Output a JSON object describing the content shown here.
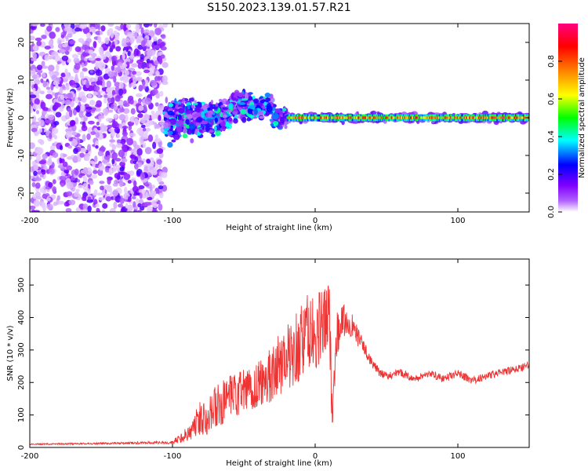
{
  "figure_title": "S150.2023.139.01.57.R21",
  "chart_data": [
    {
      "type": "heatmap",
      "title": "",
      "xlabel": "Height of straight line (km)",
      "ylabel": "Frequency (Hz)",
      "xlim": [
        -200,
        150
      ],
      "ylim": [
        -25,
        25
      ],
      "xticks": [
        -200,
        -100,
        0,
        100
      ],
      "yticks": [
        -20,
        -10,
        0,
        10,
        20
      ],
      "colorbar": {
        "label": "Normalized spectral amplitude",
        "range": [
          0,
          1
        ],
        "ticks": [
          "0.0",
          "0.2",
          "0.4",
          "0.6",
          "0.8"
        ],
        "tick_values": [
          0.0,
          0.2,
          0.4,
          0.6,
          0.8
        ],
        "colors": [
          "#ffffff",
          "#8000ff",
          "#0000ff",
          "#00ffff",
          "#00ff00",
          "#ffff00",
          "#ff8000",
          "#ff0000",
          "#ff0080"
        ]
      },
      "regions": [
        {
          "name": "diffuse noise",
          "x": [
            -200,
            -105
          ],
          "freq_spread_hz": 25,
          "amplitude": 0.05
        },
        {
          "name": "turbulent echo",
          "x": [
            -105,
            -20
          ],
          "freq_center_hz": 0,
          "freq_spread_hz": 8,
          "amplitude": 0.25
        },
        {
          "name": "steady line echo",
          "x": [
            -20,
            150
          ],
          "freq_center_hz": 0,
          "freq_spread_hz": 1.5,
          "amplitude": 0.9
        }
      ]
    },
    {
      "type": "line",
      "title": "",
      "xlabel": "Height of straight line (km)",
      "ylabel": "SNR (10 * v/v)",
      "xlim": [
        -200,
        150
      ],
      "ylim": [
        0,
        580
      ],
      "xticks": [
        -200,
        -100,
        0,
        100
      ],
      "yticks": [
        0,
        100,
        200,
        300,
        400,
        500
      ],
      "series": [
        {
          "name": "SNR",
          "color": "#ee3333",
          "x": [
            -200,
            -150,
            -110,
            -100,
            -90,
            -80,
            -70,
            -60,
            -50,
            -40,
            -30,
            -20,
            -10,
            -5,
            0,
            5,
            10,
            12,
            15,
            20,
            25,
            30,
            35,
            40,
            45,
            50,
            60,
            70,
            80,
            90,
            100,
            110,
            120,
            130,
            140,
            150
          ],
          "values": [
            10,
            12,
            15,
            15,
            40,
            90,
            120,
            150,
            170,
            190,
            230,
            280,
            320,
            360,
            330,
            380,
            400,
            100,
            350,
            390,
            380,
            340,
            300,
            260,
            230,
            220,
            230,
            210,
            230,
            210,
            230,
            205,
            220,
            230,
            240,
            255
          ],
          "noise_amplitude": [
            2,
            3,
            4,
            5,
            25,
            60,
            70,
            70,
            75,
            80,
            90,
            100,
            120,
            120,
            130,
            120,
            110,
            60,
            70,
            50,
            40,
            30,
            20,
            15,
            12,
            12,
            12,
            12,
            12,
            12,
            12,
            12,
            12,
            12,
            12,
            12
          ]
        }
      ]
    }
  ]
}
